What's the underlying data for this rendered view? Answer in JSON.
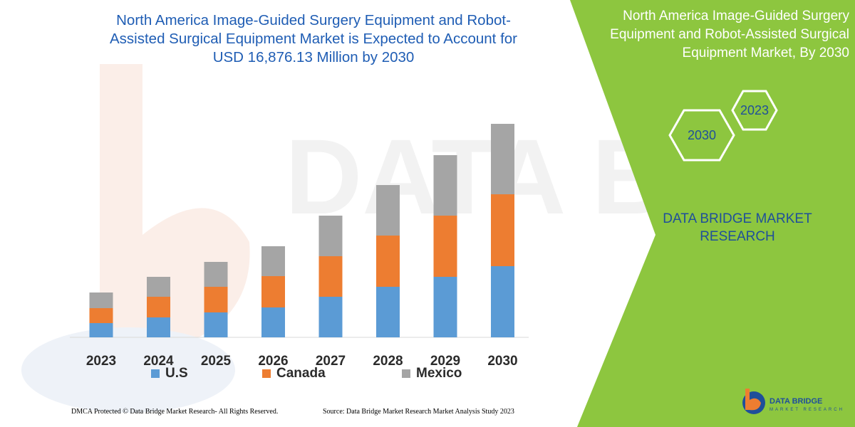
{
  "header": {
    "title_line1": "North America Image-Guided Surgery Equipment and Robot-",
    "title_line2": "Assisted Surgical Equipment Market is Expected to Account for",
    "title_line3": "USD 16,876.13 Million by 2030"
  },
  "side_panel": {
    "title_line1": "North America Image-Guided Surgery",
    "title_line2": "Equipment and Robot-Assisted Surgical",
    "title_line3": "Equipment Market, By 2030",
    "hex_year_a": "2023",
    "hex_year_b": "2030",
    "brand_line1": "DATA BRIDGE MARKET",
    "brand_line2": "RESEARCH",
    "background_color": "#8dc63f"
  },
  "footer": {
    "left": "DMCA Protected © Data Bridge Market Research-  All Rights Reserved.",
    "right": "Source: Data Bridge Market Research  Market Analysis Study 2023"
  },
  "logo": {
    "name": "DATA BRIDGE",
    "tagline": "MARKET RESEARCH"
  },
  "chart_data": {
    "type": "bar",
    "stacked": true,
    "categories": [
      "2023",
      "2024",
      "2025",
      "2026",
      "2027",
      "2028",
      "2029",
      "2030"
    ],
    "series": [
      {
        "name": "U.S",
        "color": "#5b9bd5",
        "values": [
          20,
          28,
          35,
          42,
          57,
          71,
          85,
          100
        ]
      },
      {
        "name": "Canada",
        "color": "#ed7d31",
        "values": [
          21,
          29,
          36,
          44,
          57,
          72,
          86,
          101
        ]
      },
      {
        "name": "Mexico",
        "color": "#a5a5a5",
        "values": [
          22,
          28,
          35,
          42,
          57,
          71,
          85,
          99
        ]
      }
    ],
    "ylim": [
      0,
      300
    ],
    "grid": false,
    "legend_position": "bottom"
  }
}
